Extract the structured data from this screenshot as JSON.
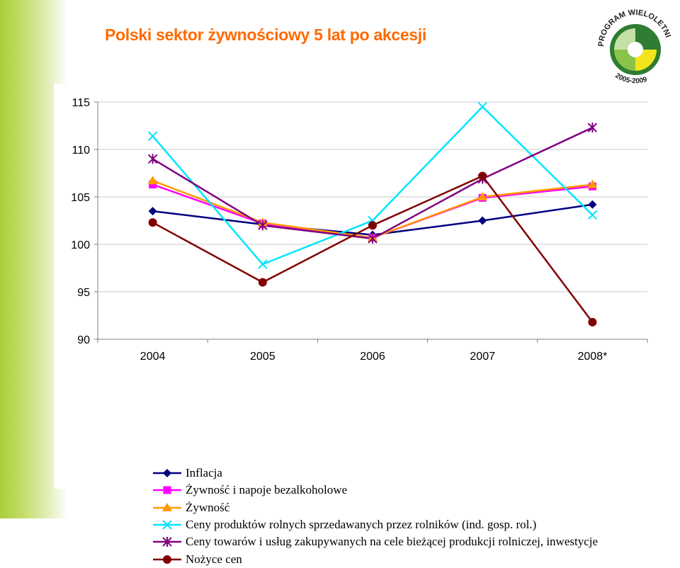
{
  "page": {
    "title": "Polski sektor żywnościowy 5 lat po akcesji",
    "logo": {
      "icon": "program-wieloletni-logo",
      "text": "PROGRAM WIELOLETNI",
      "years": "2005-2009"
    }
  },
  "chart_data": {
    "type": "line",
    "title": "",
    "xlabel": "",
    "ylabel": "",
    "categories": [
      "2004",
      "2005",
      "2006",
      "2007",
      "2008*"
    ],
    "ylim": [
      90,
      115
    ],
    "yticks": [
      90,
      95,
      100,
      105,
      110,
      115
    ],
    "grid": true,
    "legend_position": "bottom",
    "series": [
      {
        "name": "Inflacja",
        "color": "#000080",
        "marker": "diamond",
        "values": [
          103.5,
          102.1,
          101.0,
          102.5,
          104.2
        ]
      },
      {
        "name": "Żywność i napoje bezalkoholowe",
        "color": "#ff00ff",
        "marker": "square",
        "values": [
          106.3,
          102.2,
          100.7,
          104.9,
          106.1
        ]
      },
      {
        "name": "Żywność",
        "color": "#ff9900",
        "marker": "triangle",
        "values": [
          106.7,
          102.3,
          100.7,
          105.0,
          106.3
        ]
      },
      {
        "name": "Ceny produktów rolnych sprzedawanych przez rolników (ind. gosp. rol.)",
        "color": "#00e5ff",
        "marker": "x",
        "values": [
          111.4,
          97.9,
          102.5,
          114.5,
          103.1
        ]
      },
      {
        "name": "Ceny towarów i usług zakupywanych na cele bieżącej produkcji rolniczej, inwestycje",
        "color": "#800080",
        "marker": "asterisk",
        "values": [
          109.0,
          102.0,
          100.6,
          106.9,
          112.3
        ]
      },
      {
        "name": "Nożyce cen",
        "color": "#800000",
        "marker": "circle",
        "values": [
          102.3,
          96.0,
          102.0,
          107.2,
          91.8
        ]
      }
    ]
  }
}
